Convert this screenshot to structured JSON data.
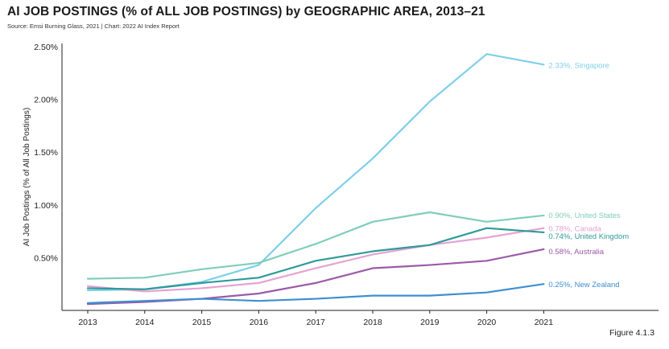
{
  "header": {
    "title": "AI JOB POSTINGS (% of ALL JOB POSTINGS) by GEOGRAPHIC AREA, 2013–21",
    "source": "Source: Emsi Burning Glass, 2021 | Chart: 2022 AI Index Report"
  },
  "footer": {
    "figure_label": "Figure 4.1.3"
  },
  "chart_data": {
    "type": "line",
    "title": "AI JOB POSTINGS (% of ALL JOB POSTINGS) by GEOGRAPHIC AREA, 2013–21",
    "xlabel": "",
    "ylabel": "AI Job Postings (% of All Job Postings)",
    "x": [
      "2013",
      "2014",
      "2015",
      "2016",
      "2017",
      "2018",
      "2019",
      "2020",
      "2021"
    ],
    "ylim": [
      0,
      2.5
    ],
    "yticks": [
      "0.50%",
      "1.00%",
      "1.50%",
      "2.00%",
      "2.50%"
    ],
    "ytick_values": [
      0.5,
      1.0,
      1.5,
      2.0,
      2.5
    ],
    "grid": false,
    "legend": "end-of-line labels",
    "series": [
      {
        "name": "Singapore",
        "end_label": "2.33%, Singapore",
        "color": "#7fcfe9",
        "values": [
          0.19,
          0.2,
          0.27,
          0.43,
          0.97,
          1.44,
          1.98,
          2.43,
          2.33
        ]
      },
      {
        "name": "United States",
        "end_label": "0.90%, United States",
        "color": "#7fcdbb",
        "values": [
          0.3,
          0.31,
          0.39,
          0.45,
          0.63,
          0.84,
          0.93,
          0.84,
          0.9
        ]
      },
      {
        "name": "Canada",
        "end_label": "0.78%, Canada",
        "color": "#e5a3d3",
        "values": [
          0.23,
          0.18,
          0.21,
          0.26,
          0.4,
          0.53,
          0.62,
          0.69,
          0.78
        ]
      },
      {
        "name": "United Kingdom",
        "end_label": "0.74%, United Kingdom",
        "color": "#2f9a9a",
        "values": [
          0.21,
          0.2,
          0.26,
          0.31,
          0.47,
          0.56,
          0.62,
          0.78,
          0.74
        ]
      },
      {
        "name": "Australia",
        "end_label": "0.58%, Australia",
        "color": "#9b5aa8",
        "values": [
          0.06,
          0.08,
          0.11,
          0.16,
          0.26,
          0.4,
          0.43,
          0.47,
          0.58
        ]
      },
      {
        "name": "New Zealand",
        "end_label": "0.25%, New Zealand",
        "color": "#3e8fd0",
        "values": [
          0.07,
          0.09,
          0.11,
          0.09,
          0.11,
          0.14,
          0.14,
          0.17,
          0.25
        ]
      }
    ]
  }
}
